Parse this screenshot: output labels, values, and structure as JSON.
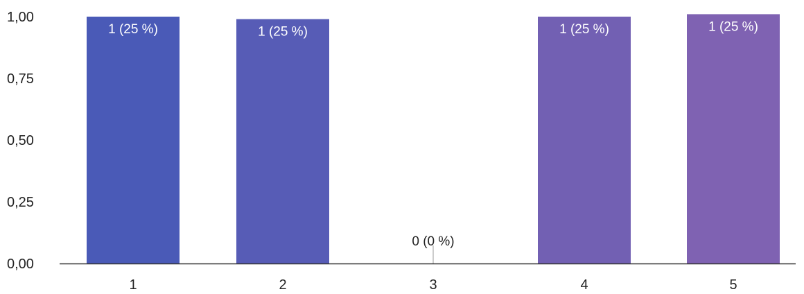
{
  "chart_data": {
    "type": "bar",
    "categories": [
      "1",
      "2",
      "3",
      "4",
      "5"
    ],
    "values": [
      1,
      0.99,
      0,
      1,
      1.01
    ],
    "data_labels": [
      "1 (25 %)",
      "1 (25 %)",
      "0 (0 %)",
      "1 (25 %)",
      "1 (25 %)"
    ],
    "y_ticks": [
      "1,00",
      "0,75",
      "0,50",
      "0,25",
      "0,00"
    ],
    "y_tick_values": [
      1,
      0.75,
      0.5,
      0.25,
      0
    ],
    "ylim": [
      0,
      1
    ],
    "title": "",
    "xlabel": "",
    "ylabel": "",
    "grid": false,
    "legend": "none",
    "colors": {
      "bar_start": "#4a5ab7",
      "bar_end": "#7f62b2",
      "axis": "#333333",
      "zero_marker": "#bbbbbb"
    }
  }
}
